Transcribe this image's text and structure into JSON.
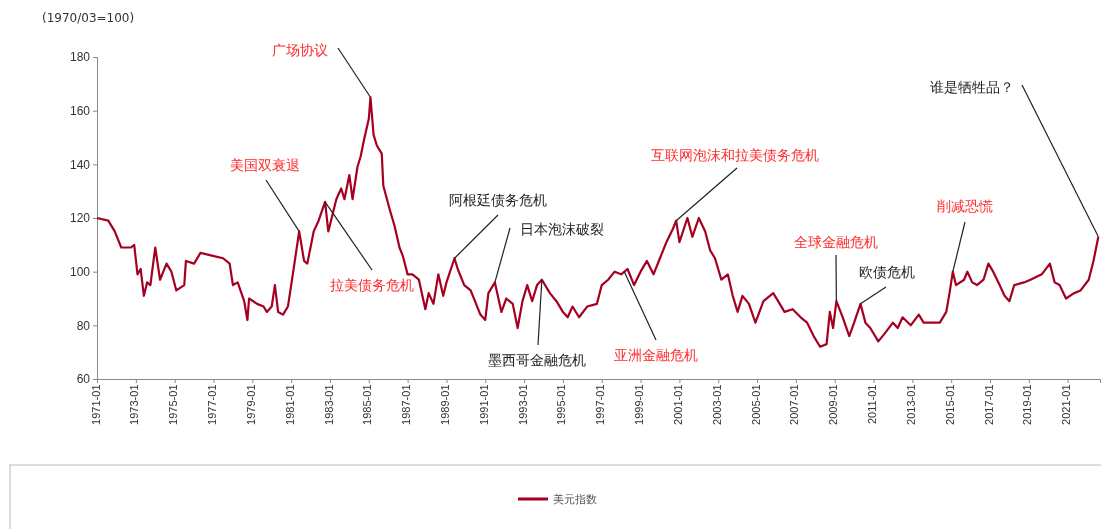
{
  "chart_data": {
    "type": "line",
    "ylabel": "(1970/03=100)",
    "xlim": [
      "1971-01",
      "2022-09"
    ],
    "ylim": [
      60,
      180
    ],
    "yticks": [
      60,
      80,
      100,
      120,
      140,
      160,
      180
    ],
    "xticks": [
      "1971-01",
      "1973-01",
      "1975-01",
      "1977-01",
      "1979-01",
      "1981-01",
      "1983-01",
      "1985-01",
      "1987-01",
      "1989-01",
      "1991-01",
      "1993-01",
      "1995-01",
      "1997-01",
      "1999-01",
      "2001-01",
      "2003-01",
      "2005-01",
      "2007-01",
      "2009-01",
      "2011-01",
      "2013-01",
      "2015-01",
      "2017-01",
      "2019-01",
      "2021-01"
    ],
    "grid": false,
    "legend": "bottom",
    "marker": "none",
    "line_style": "solid",
    "x": [
      "1971-01",
      "1971-08",
      "1971-12",
      "1972-04",
      "1972-10",
      "1972-12",
      "1973-02",
      "1973-04",
      "1973-06",
      "1973-08",
      "1973-10",
      "1974-01",
      "1974-04",
      "1974-08",
      "1974-11",
      "1975-02",
      "1975-07",
      "1975-08",
      "1976-01",
      "1976-05",
      "1976-12",
      "1977-07",
      "1977-11",
      "1978-01",
      "1978-04",
      "1978-08",
      "1978-10",
      "1978-11",
      "1979-04",
      "1979-08",
      "1979-10",
      "1980-01",
      "1980-03",
      "1980-05",
      "1980-08",
      "1980-11",
      "1981-02",
      "1981-06",
      "1981-09",
      "1981-11",
      "1982-03",
      "1982-06",
      "1982-10",
      "1982-12",
      "1983-05",
      "1983-08",
      "1983-10",
      "1984-01",
      "1984-03",
      "1984-06",
      "1984-08",
      "1984-10",
      "1985-01",
      "1985-02",
      "1985-04",
      "1985-06",
      "1985-09",
      "1985-10",
      "1986-02",
      "1986-05",
      "1986-08",
      "1986-10",
      "1987-01",
      "1987-04",
      "1987-08",
      "1987-12",
      "1988-02",
      "1988-05",
      "1988-08",
      "1988-11",
      "1989-01",
      "1989-06",
      "1989-08",
      "1989-12",
      "1990-04",
      "1990-10",
      "1991-01",
      "1991-03",
      "1991-07",
      "1991-11",
      "1992-02",
      "1992-06",
      "1992-09",
      "1992-12",
      "1993-03",
      "1993-06",
      "1993-09",
      "1993-12",
      "1994-05",
      "1994-09",
      "1995-01",
      "1995-04",
      "1995-07",
      "1995-11",
      "1996-04",
      "1996-10",
      "1997-01",
      "1997-05",
      "1997-09",
      "1998-01",
      "1998-05",
      "1998-09",
      "1999-01",
      "1999-05",
      "1999-09",
      "2000-01",
      "2000-05",
      "2000-09",
      "2000-11",
      "2001-01",
      "2001-06",
      "2001-09",
      "2002-01",
      "2002-05",
      "2002-08",
      "2002-11",
      "2003-03",
      "2003-07",
      "2003-10",
      "2004-01",
      "2004-04",
      "2004-08",
      "2004-12",
      "2005-05",
      "2005-11",
      "2006-02",
      "2006-06",
      "2006-11",
      "2007-04",
      "2007-08",
      "2007-12",
      "2008-04",
      "2008-08",
      "2008-10",
      "2008-12",
      "2009-02",
      "2009-06",
      "2009-10",
      "2010-01",
      "2010-05",
      "2010-08",
      "2010-11",
      "2011-04",
      "2011-08",
      "2012-01",
      "2012-04",
      "2012-07",
      "2012-12",
      "2013-05",
      "2013-08",
      "2014-01",
      "2014-06",
      "2014-10",
      "2014-12",
      "2015-02",
      "2015-04",
      "2015-09",
      "2015-11",
      "2016-02",
      "2016-05",
      "2016-09",
      "2016-12",
      "2017-03",
      "2017-07",
      "2017-10",
      "2018-01",
      "2018-04",
      "2018-10",
      "2019-02",
      "2019-09",
      "2020-02",
      "2020-05",
      "2020-08",
      "2020-12",
      "2021-05",
      "2021-09",
      "2022-02",
      "2022-05",
      "2022-08"
    ],
    "series": [
      {
        "name": "美元指数",
        "color": "#a50021",
        "values": [
          120,
          119,
          115,
          109,
          109,
          110,
          99,
          101,
          91,
          96,
          95,
          109,
          97,
          103,
          100,
          93,
          95,
          104,
          103,
          107,
          106,
          105,
          103,
          95,
          96,
          89,
          82,
          90,
          88,
          87,
          85,
          87,
          95,
          85,
          84,
          87,
          99,
          115,
          104,
          103,
          115,
          119,
          126,
          115,
          127,
          131,
          127,
          136,
          127,
          139,
          143,
          149,
          157,
          165,
          151,
          147,
          144,
          132,
          123,
          117,
          109,
          106,
          99,
          99,
          97,
          86,
          92,
          88,
          99,
          91,
          96,
          105,
          101,
          95,
          93,
          84,
          82,
          92,
          96,
          85,
          90,
          88,
          79,
          89,
          95,
          89,
          95,
          97,
          92,
          89,
          85,
          83,
          87,
          83,
          87,
          88,
          95,
          97,
          100,
          99,
          101,
          95,
          100,
          104,
          99,
          105,
          111,
          116,
          119,
          111,
          120,
          113,
          120,
          115,
          108,
          105,
          97,
          99,
          91,
          85,
          91,
          88,
          81,
          89,
          92,
          89,
          85,
          86,
          83,
          81,
          76,
          72,
          73,
          85,
          79,
          89,
          83,
          76,
          81,
          88,
          81,
          79,
          74,
          77,
          81,
          79,
          83,
          80,
          84,
          81,
          81,
          81,
          85,
          92,
          100,
          95,
          97,
          100,
          96,
          95,
          97,
          103,
          100,
          95,
          91,
          89,
          95,
          96,
          97,
          99,
          103,
          96,
          95,
          90,
          92,
          93,
          97,
          104,
          113
        ]
      }
    ],
    "annotations": [
      {
        "text": "广场协议",
        "x": "1985-02",
        "y": 165
      },
      {
        "text": "美国双衰退",
        "x": "1981-06",
        "y": 115
      },
      {
        "text": "拉美债务危机",
        "x": "1982-10",
        "y": 126
      },
      {
        "text": "阿根廷债务危机",
        "x": "1989-06",
        "y": 105
      },
      {
        "text": "日本泡沫破裂",
        "x": "1991-07",
        "y": 96
      },
      {
        "text": "墨西哥金融危机",
        "x": "1993-12",
        "y": 97
      },
      {
        "text": "亚洲金融危机",
        "x": "1998-03",
        "y": 100
      },
      {
        "text": "互联网泡沫和拉美债务危机",
        "x": "2000-11",
        "y": 119
      },
      {
        "text": "全球金融危机",
        "x": "2009-02",
        "y": 89
      },
      {
        "text": "欧债危机",
        "x": "2010-05",
        "y": 88
      },
      {
        "text": "削减恐慌",
        "x": "2015-02",
        "y": 100
      },
      {
        "text": "谁是牺牲品？",
        "x": "2022-08",
        "y": 113
      }
    ]
  }
}
